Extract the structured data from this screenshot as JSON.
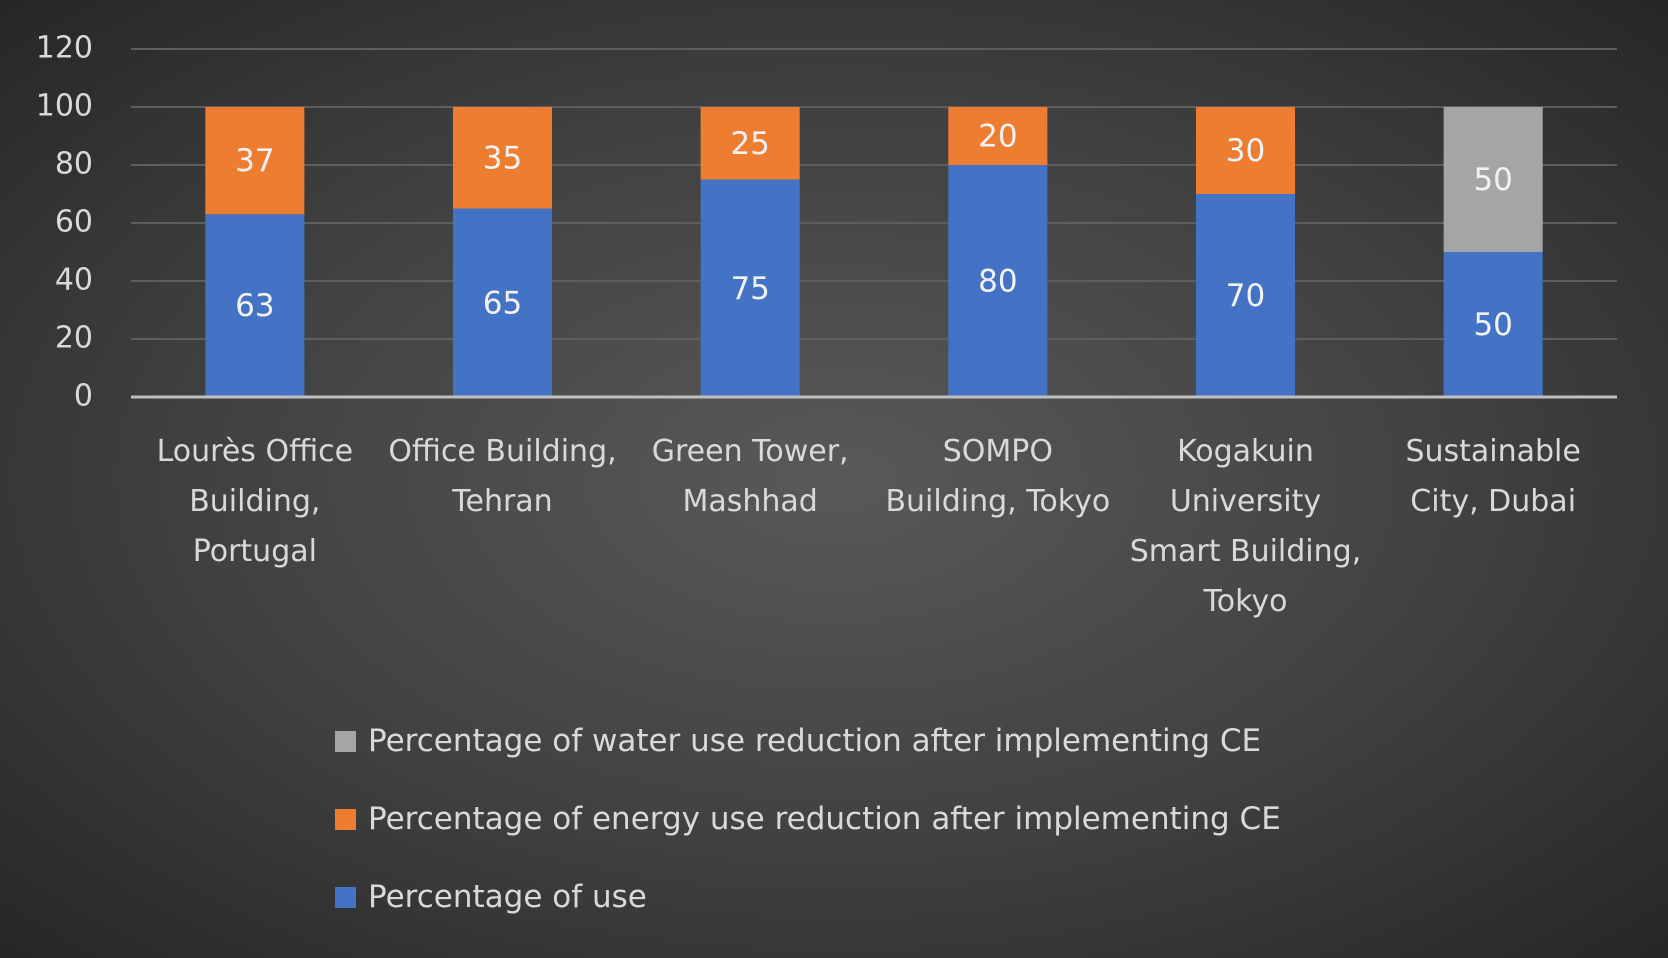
{
  "chart_data": {
    "type": "stacked-bar",
    "categories": [
      "Lourès Office Building, Portugal",
      "Office Building, Tehran",
      "Green Tower, Mashhad",
      "SOMPO Building, Tokyo",
      "Kogakuin University Smart Building, Tokyo",
      "Sustainable City, Dubai"
    ],
    "series": [
      {
        "name": "Percentage of use",
        "color": "#4472c4",
        "values": [
          63,
          65,
          75,
          80,
          70,
          50
        ]
      },
      {
        "name": "Percentage of energy use reduction after implementing CE",
        "color": "#ed7d31",
        "values": [
          37,
          35,
          25,
          20,
          30,
          null
        ]
      },
      {
        "name": "Percentage of water use reduction after implementing CE",
        "color": "#a5a5a5",
        "values": [
          null,
          null,
          null,
          null,
          null,
          50
        ]
      }
    ],
    "ylim": [
      0,
      120
    ],
    "yticks": [
      0,
      20,
      40,
      60,
      80,
      100,
      120
    ],
    "grid": true
  }
}
